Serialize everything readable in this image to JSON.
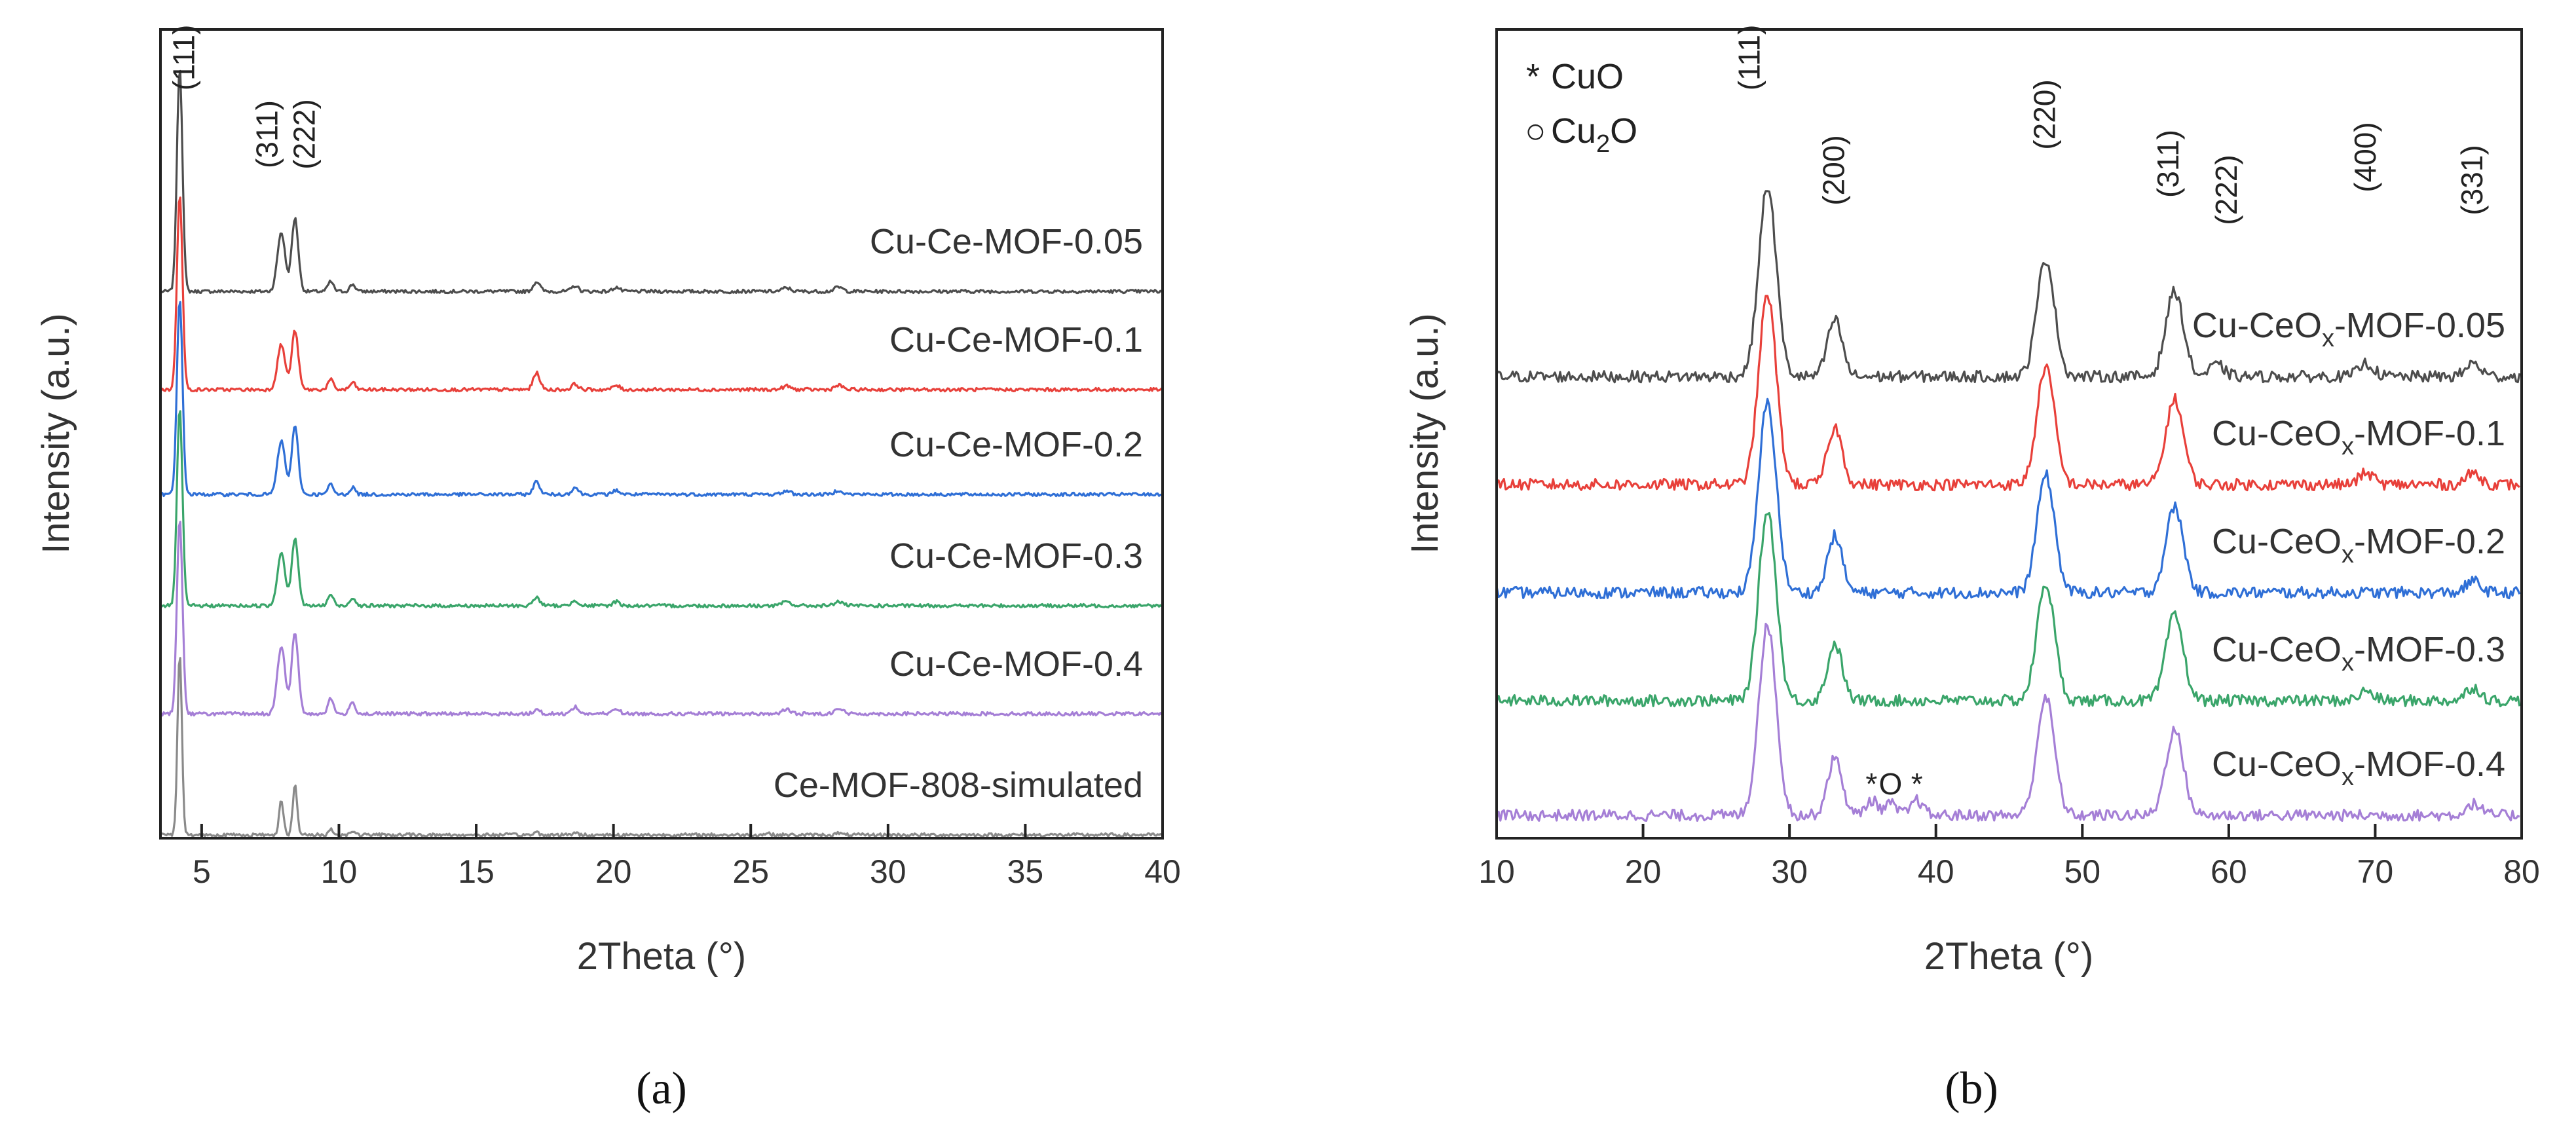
{
  "chart_data": [
    {
      "panel": "(a)",
      "type": "line",
      "xlabel": "2Theta (°)",
      "ylabel": "Intensity (a.u.)",
      "xlim": [
        3.5,
        40
      ],
      "xticks": [
        5,
        10,
        15,
        20,
        25,
        30,
        35,
        40
      ],
      "grid": false,
      "peak_labels": [
        {
          "text": "(111)",
          "x": 4.2
        },
        {
          "text": "(311)",
          "x": 7.9
        },
        {
          "text": "(222)",
          "x": 8.4
        }
      ],
      "series": [
        {
          "name": "Cu-Ce-MOF-0.05",
          "color": "#4d4d4d",
          "offset": 5,
          "peaks": [
            [
              4.2,
              1.6,
              0.1
            ],
            [
              7.9,
              0.42,
              0.14
            ],
            [
              8.4,
              0.52,
              0.12
            ],
            [
              9.7,
              0.07,
              0.1
            ],
            [
              10.5,
              0.05,
              0.1
            ],
            [
              17.2,
              0.07,
              0.12
            ],
            [
              18.6,
              0.04,
              0.12
            ],
            [
              20.1,
              0.03,
              0.12
            ],
            [
              26.3,
              0.025,
              0.15
            ],
            [
              28.2,
              0.03,
              0.15
            ]
          ]
        },
        {
          "name": "Cu-Ce-MOF-0.1",
          "color": "#e8403a",
          "offset": 4,
          "peaks": [
            [
              4.2,
              1.4,
              0.1
            ],
            [
              7.9,
              0.32,
              0.14
            ],
            [
              8.4,
              0.42,
              0.12
            ],
            [
              9.7,
              0.07,
              0.1
            ],
            [
              10.5,
              0.05,
              0.1
            ],
            [
              17.2,
              0.12,
              0.12
            ],
            [
              18.6,
              0.04,
              0.12
            ],
            [
              20.1,
              0.03,
              0.12
            ],
            [
              26.3,
              0.025,
              0.15
            ],
            [
              28.2,
              0.03,
              0.15
            ]
          ]
        },
        {
          "name": "Cu-Ce-MOF-0.2",
          "color": "#2f6fd6",
          "offset": 3,
          "peaks": [
            [
              4.2,
              1.4,
              0.1
            ],
            [
              7.9,
              0.38,
              0.14
            ],
            [
              8.4,
              0.48,
              0.12
            ],
            [
              9.7,
              0.07,
              0.1
            ],
            [
              10.5,
              0.05,
              0.1
            ],
            [
              17.2,
              0.09,
              0.12
            ],
            [
              18.6,
              0.05,
              0.12
            ],
            [
              20.1,
              0.03,
              0.12
            ],
            [
              26.3,
              0.025,
              0.15
            ],
            [
              28.2,
              0.03,
              0.15
            ]
          ]
        },
        {
          "name": "Cu-Ce-MOF-0.3",
          "color": "#3aa56a",
          "offset": 2,
          "peaks": [
            [
              4.2,
              1.4,
              0.1
            ],
            [
              7.9,
              0.38,
              0.14
            ],
            [
              8.4,
              0.48,
              0.12
            ],
            [
              9.7,
              0.08,
              0.1
            ],
            [
              10.5,
              0.06,
              0.1
            ],
            [
              17.2,
              0.06,
              0.12
            ],
            [
              18.6,
              0.04,
              0.12
            ],
            [
              20.1,
              0.03,
              0.12
            ],
            [
              26.3,
              0.03,
              0.15
            ],
            [
              28.2,
              0.03,
              0.15
            ]
          ]
        },
        {
          "name": "Cu-Ce-MOF-0.4",
          "color": "#a57fd6",
          "offset": 1,
          "peaks": [
            [
              4.2,
              1.4,
              0.1
            ],
            [
              7.9,
              0.48,
              0.14
            ],
            [
              8.4,
              0.58,
              0.12
            ],
            [
              9.7,
              0.11,
              0.1
            ],
            [
              10.5,
              0.08,
              0.1
            ],
            [
              17.2,
              0.03,
              0.12
            ],
            [
              18.6,
              0.05,
              0.12
            ],
            [
              20.1,
              0.04,
              0.12
            ],
            [
              26.3,
              0.03,
              0.15
            ],
            [
              28.2,
              0.04,
              0.15
            ]
          ]
        },
        {
          "name": "Ce-MOF-808-simulated",
          "color": "#8a8a8a",
          "offset": 0,
          "peaks": [
            [
              4.2,
              1.3,
              0.08
            ],
            [
              7.9,
              0.25,
              0.08
            ],
            [
              8.4,
              0.35,
              0.08
            ],
            [
              9.7,
              0.04,
              0.08
            ],
            [
              10.5,
              0.03,
              0.08
            ],
            [
              17.2,
              0.02,
              0.08
            ],
            [
              18.6,
              0.02,
              0.08
            ],
            [
              25.6,
              0.015,
              0.08
            ],
            [
              28.2,
              0.015,
              0.08
            ]
          ]
        }
      ]
    },
    {
      "panel": "(b)",
      "type": "line",
      "xlabel": "2Theta (°)",
      "ylabel": "Intensity (a.u.)",
      "xlim": [
        10,
        80
      ],
      "xticks": [
        10,
        20,
        30,
        40,
        50,
        60,
        70,
        80
      ],
      "grid": false,
      "legend": {
        "position": "top-left",
        "entries": [
          {
            "symbol": "*",
            "label": "CuO",
            "sub": ""
          },
          {
            "symbol": "○",
            "label": "Cu",
            "sub": "2",
            "label_after": "O"
          }
        ]
      },
      "peak_labels": [
        {
          "text": "(111)",
          "x": 28.5
        },
        {
          "text": "(200)",
          "x": 33.1
        },
        {
          "text": "(220)",
          "x": 47.5
        },
        {
          "text": "(311)",
          "x": 56.3
        },
        {
          "text": "(222)",
          "x": 59.2
        },
        {
          "text": "(400)",
          "x": 69.4
        },
        {
          "text": "(331)",
          "x": 76.7
        }
      ],
      "phase_marks": [
        {
          "text": "*",
          "x": 35.6,
          "series": "Cu-CeOx-MOF-0.4"
        },
        {
          "text": "O",
          "x": 36.9,
          "series": "Cu-CeOx-MOF-0.4"
        },
        {
          "text": "*",
          "x": 38.7,
          "series": "Cu-CeOx-MOF-0.4"
        }
      ],
      "series": [
        {
          "name": "Cu-CeOx-MOF-0.05",
          "name_base": "Cu-CeO",
          "name_sub": "x",
          "name_end": "-MOF-0.05",
          "color": "#4d4d4d",
          "offset": 4,
          "peaks": [
            [
              28.5,
              1.0,
              0.6
            ],
            [
              33.1,
              0.3,
              0.5
            ],
            [
              47.5,
              0.62,
              0.6
            ],
            [
              56.3,
              0.45,
              0.6
            ],
            [
              59.2,
              0.06,
              0.5
            ],
            [
              69.4,
              0.07,
              0.5
            ],
            [
              76.7,
              0.07,
              0.5
            ]
          ]
        },
        {
          "name": "Cu-CeOx-MOF-0.1",
          "name_base": "Cu-CeO",
          "name_sub": "x",
          "name_end": "-MOF-0.1",
          "color": "#e8403a",
          "offset": 3,
          "peaks": [
            [
              28.5,
              1.0,
              0.6
            ],
            [
              33.1,
              0.3,
              0.5
            ],
            [
              47.5,
              0.62,
              0.6
            ],
            [
              56.3,
              0.45,
              0.6
            ],
            [
              69.4,
              0.06,
              0.5
            ],
            [
              76.7,
              0.06,
              0.5
            ]
          ]
        },
        {
          "name": "Cu-CeOx-MOF-0.2",
          "name_base": "Cu-CeO",
          "name_sub": "x",
          "name_end": "-MOF-0.2",
          "color": "#2f6fd6",
          "offset": 2,
          "peaks": [
            [
              28.5,
              1.0,
              0.6
            ],
            [
              33.1,
              0.3,
              0.5
            ],
            [
              47.5,
              0.62,
              0.6
            ],
            [
              56.3,
              0.45,
              0.6
            ],
            [
              76.7,
              0.06,
              0.5
            ]
          ]
        },
        {
          "name": "Cu-CeOx-MOF-0.3",
          "name_base": "Cu-CeO",
          "name_sub": "x",
          "name_end": "-MOF-0.3",
          "color": "#3aa56a",
          "offset": 1,
          "peaks": [
            [
              28.5,
              1.0,
              0.6
            ],
            [
              33.1,
              0.3,
              0.5
            ],
            [
              47.5,
              0.62,
              0.6
            ],
            [
              56.3,
              0.45,
              0.6
            ],
            [
              69.4,
              0.05,
              0.5
            ],
            [
              76.7,
              0.07,
              0.5
            ]
          ]
        },
        {
          "name": "Cu-CeOx-MOF-0.4",
          "name_base": "Cu-CeO",
          "name_sub": "x",
          "name_end": "-MOF-0.4",
          "color": "#a57fd6",
          "offset": 0,
          "peaks": [
            [
              28.5,
              1.0,
              0.6
            ],
            [
              33.1,
              0.3,
              0.5
            ],
            [
              35.6,
              0.08,
              0.4
            ],
            [
              36.9,
              0.06,
              0.4
            ],
            [
              38.7,
              0.08,
              0.4
            ],
            [
              47.5,
              0.62,
              0.6
            ],
            [
              56.3,
              0.45,
              0.6
            ],
            [
              76.7,
              0.06,
              0.5
            ]
          ]
        }
      ]
    }
  ]
}
